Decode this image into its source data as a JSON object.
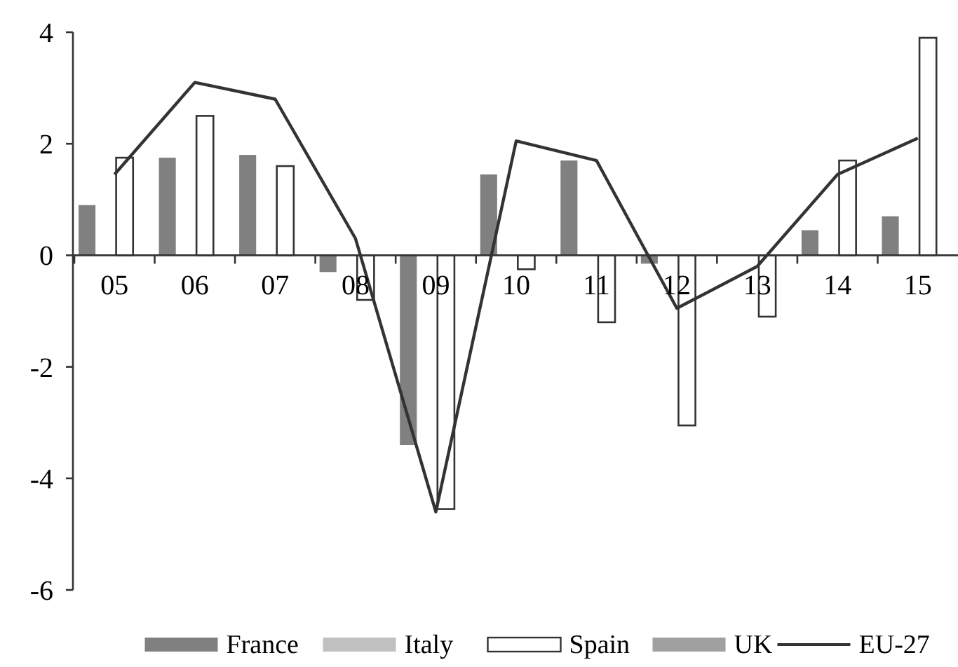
{
  "chart_data": {
    "type": "bar",
    "categories": [
      "05",
      "06",
      "07",
      "08",
      "09",
      "10",
      "11",
      "12",
      "13",
      "14",
      "15"
    ],
    "series": [
      {
        "name": "France",
        "color": "#808080",
        "values": [
          0.9,
          1.75,
          1.8,
          -0.3,
          -3.4,
          1.45,
          1.7,
          -0.15,
          0,
          0.45,
          0.7
        ]
      },
      {
        "name": "Italy",
        "color": "#c0c0c0",
        "values": [
          null,
          null,
          null,
          null,
          null,
          null,
          null,
          null,
          null,
          null,
          null
        ]
      },
      {
        "name": "Spain",
        "color": "#ffffff",
        "values": [
          1.75,
          2.5,
          1.6,
          -0.8,
          -4.55,
          -0.25,
          -1.2,
          -3.05,
          -1.1,
          1.7,
          3.9
        ]
      },
      {
        "name": "UK",
        "color": "#a0a0a0",
        "values": [
          null,
          null,
          null,
          null,
          null,
          null,
          null,
          null,
          null,
          null,
          null
        ]
      },
      {
        "name": "EU-27",
        "type": "line",
        "color": "#333333",
        "values": [
          1.45,
          3.1,
          2.8,
          0.3,
          -4.6,
          2.05,
          1.7,
          -0.95,
          -0.2,
          1.45,
          2.1
        ]
      }
    ],
    "ylim": [
      -6,
      4
    ],
    "yticks": [
      -6,
      -4,
      -2,
      0,
      2,
      4
    ],
    "grid": false,
    "legend": "bottom",
    "marker": "none",
    "line_style": "solid"
  }
}
